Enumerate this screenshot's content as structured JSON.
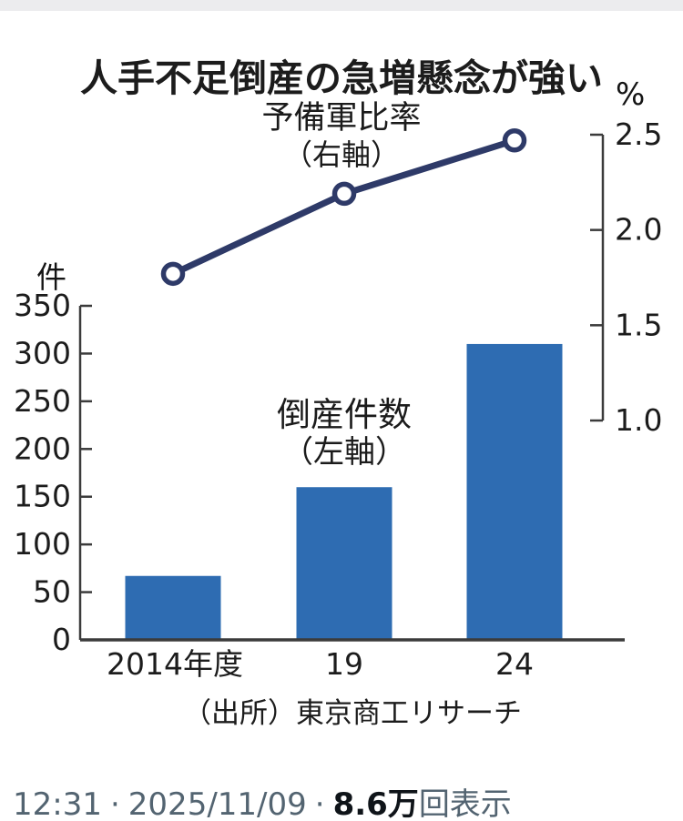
{
  "figure": {
    "title": "人手不足倒産の急増懸念が強い",
    "line_label": "予備軍比率",
    "line_label_sub": "（右軸）",
    "bar_label": "倒産件数",
    "bar_label_sub": "（左軸）",
    "left_axis_unit": "件",
    "right_axis_unit": "%",
    "source": "（出所）東京商工リサーチ"
  },
  "chart_data": {
    "type": "bar+line combo",
    "title": "人手不足倒産の急増懸念が強い",
    "categories": [
      "2014年度",
      "19",
      "24"
    ],
    "series": [
      {
        "name": "倒産件数（左軸）",
        "type": "bar",
        "axis": "left",
        "values": [
          67,
          160,
          310
        ]
      },
      {
        "name": "予備軍比率（右軸）",
        "type": "line",
        "axis": "right",
        "values": [
          1.77,
          2.19,
          2.47
        ]
      }
    ],
    "left_axis": {
      "unit": "件",
      "ticks": [
        0,
        50,
        100,
        150,
        200,
        250,
        300,
        350
      ],
      "range": [
        0,
        350
      ],
      "grid": false
    },
    "right_axis": {
      "unit": "%",
      "ticks": [
        1.0,
        1.5,
        2.0,
        2.5
      ],
      "tick_labels": [
        "1.0",
        "1.5",
        "2.0",
        "2.5"
      ],
      "range": [
        1.0,
        2.5
      ],
      "grid": false
    },
    "legend_position": "inline annotations",
    "source": "（出所）東京商工リサーチ"
  },
  "status": {
    "time": "12:31",
    "separator": "·",
    "date": "2025/11/09",
    "views_count": "8.6万",
    "views_suffix": "回表示"
  },
  "colors": {
    "bar": "#2e6cb2",
    "line": "#2e3a68",
    "marker_fill": "#ffffff",
    "axis": "#3b3b3b",
    "tick_text": "#1c1c1c",
    "status_gray": "#536471",
    "status_black": "#0f1419",
    "top_band": "#ececee"
  }
}
